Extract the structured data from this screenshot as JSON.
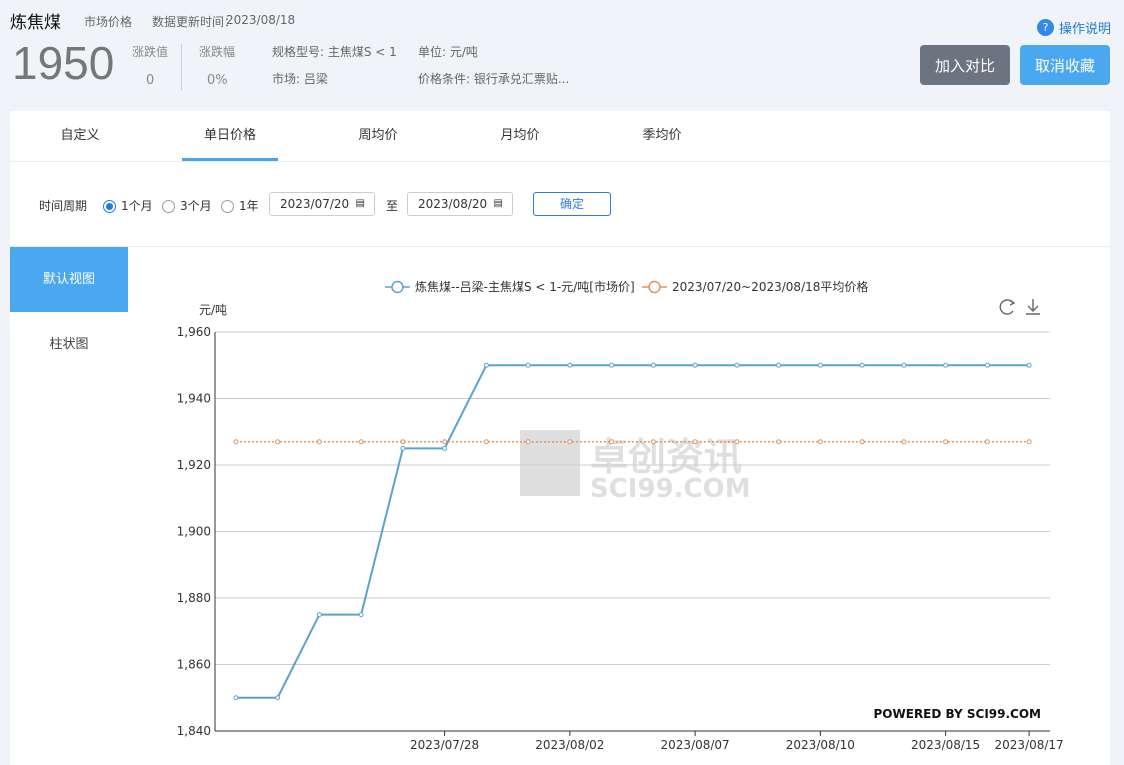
{
  "header": {
    "title": "炼焦煤",
    "price_type": "市场价格",
    "update_label": "数据更新时间：",
    "update_date": "2023/08/18",
    "price": "1950",
    "change_label": "涨跌值",
    "change_value": "0",
    "pct_label": "涨跌幅",
    "pct_value": "0%",
    "spec": "规格型号: 主焦煤S < 1",
    "market": "市场: 吕梁",
    "unit": "单位: 元/吨",
    "condition": "价格条件: 银行承兑汇票贴...",
    "help": "操作说明",
    "compare_btn": "加入对比",
    "unfav_btn": "取消收藏",
    "colors": {
      "compare": "#6b7480",
      "unfav": "#4aa8f0"
    }
  },
  "tabs": [
    {
      "label": "自定义"
    },
    {
      "label": "单日价格",
      "active": true
    },
    {
      "label": "周均价"
    },
    {
      "label": "月均价"
    },
    {
      "label": "季均价"
    }
  ],
  "filter": {
    "label": "时间周期",
    "options": [
      {
        "label": "1个月",
        "selected": true
      },
      {
        "label": "3个月"
      },
      {
        "label": "1年"
      }
    ],
    "start": "2023/07/20",
    "to": "至",
    "end": "2023/08/20",
    "confirm": "确定"
  },
  "views": [
    {
      "label": "默认视图",
      "active": true
    },
    {
      "label": "柱状图"
    }
  ],
  "watermark": {
    "cn": "卓创资讯",
    "en": "SCI99.COM",
    "powered": "POWERED BY SCI99.COM"
  },
  "chart_data": {
    "type": "line",
    "ylabel": "元/吨",
    "ylim": [
      1840,
      1960
    ],
    "yticks": [
      "1,840",
      "1,860",
      "1,880",
      "1,900",
      "1,920",
      "1,940",
      "1,960"
    ],
    "x": [
      "2023/07/21",
      "2023/07/24",
      "2023/07/25",
      "2023/07/26",
      "2023/07/27",
      "2023/07/28",
      "2023/07/31",
      "2023/08/01",
      "2023/08/02",
      "2023/08/03",
      "2023/08/04",
      "2023/08/07",
      "2023/08/08",
      "2023/08/09",
      "2023/08/10",
      "2023/08/11",
      "2023/08/14",
      "2023/08/15",
      "2023/08/16",
      "2023/08/17"
    ],
    "xticks_shown": [
      "2023/07/28",
      "2023/08/02",
      "2023/08/07",
      "2023/08/10",
      "2023/08/15",
      "2023/08/17"
    ],
    "grid": true,
    "legend": "top",
    "series": [
      {
        "name": "炼焦煤--吕梁-主焦煤S < 1-元/吨[市场价]",
        "color": "#5ba3cf",
        "values": [
          1850,
          1850,
          1875,
          1875,
          1925,
          1925,
          1950,
          1950,
          1950,
          1950,
          1950,
          1950,
          1950,
          1950,
          1950,
          1950,
          1950,
          1950,
          1950,
          1950
        ]
      },
      {
        "name": "2023/07/20~2023/08/18平均价格",
        "color": "#e0925a",
        "style": "dotted",
        "values": [
          1927,
          1927,
          1927,
          1927,
          1927,
          1927,
          1927,
          1927,
          1927,
          1927,
          1927,
          1927,
          1927,
          1927,
          1927,
          1927,
          1927,
          1927,
          1927,
          1927
        ]
      }
    ]
  }
}
